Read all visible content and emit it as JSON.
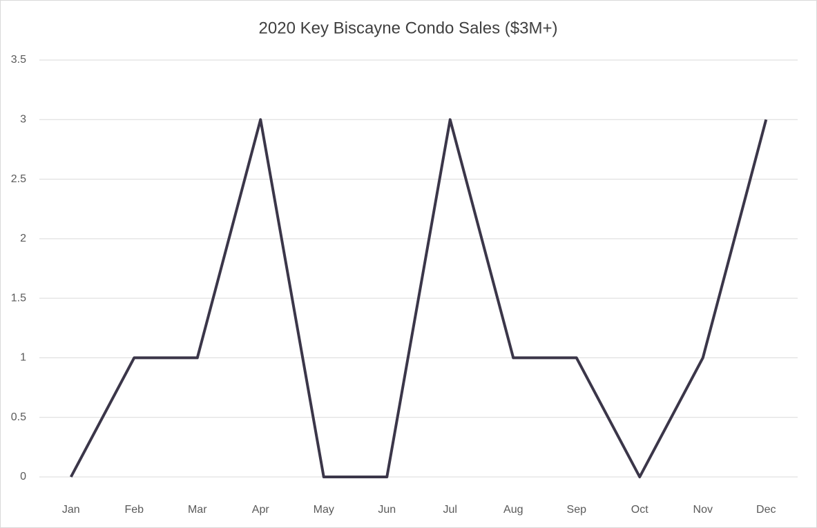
{
  "chart_data": {
    "type": "line",
    "title": "2020 Key Biscayne Condo Sales ($3M+)",
    "categories": [
      "Jan",
      "Feb",
      "Mar",
      "Apr",
      "May",
      "Jun",
      "Jul",
      "Aug",
      "Sep",
      "Oct",
      "Nov",
      "Dec"
    ],
    "values": [
      0,
      1,
      1,
      3,
      0,
      0,
      3,
      1,
      1,
      0,
      1,
      3
    ],
    "color": "#3b3649",
    "ylim": [
      0,
      3.5
    ],
    "yticks": [
      0,
      0.5,
      1,
      1.5,
      2,
      2.5,
      3,
      3.5
    ],
    "grid": true
  }
}
